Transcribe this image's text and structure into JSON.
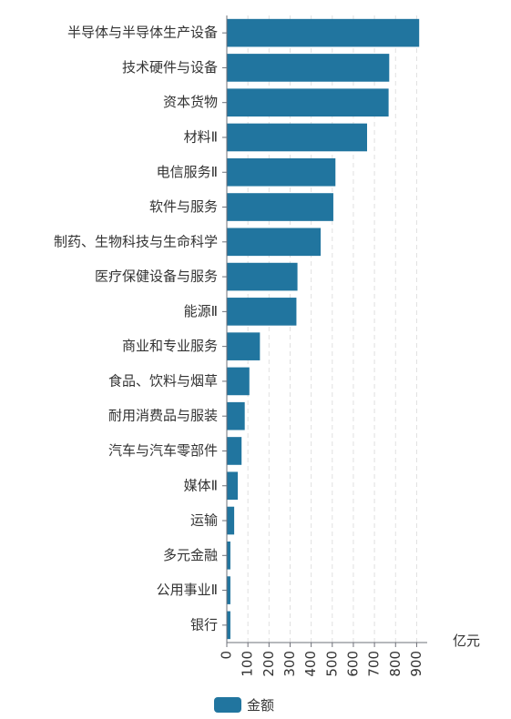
{
  "chart_data": {
    "type": "bar",
    "orientation": "horizontal",
    "categories": [
      "半导体与半导体生产设备",
      "技术硬件与设备",
      "资本货物",
      "材料Ⅱ",
      "电信服务Ⅱ",
      "软件与服务",
      "制药、生物科技与生命科学",
      "医疗保健设备与服务",
      "能源Ⅱ",
      "商业和专业服务",
      "食品、饮料与烟草",
      "耐用消费品与服装",
      "汽车与汽车零部件",
      "媒体Ⅱ",
      "运输",
      "多元金融",
      "公用事业Ⅱ",
      "银行"
    ],
    "series": [
      {
        "name": "金额",
        "color": "#21759f",
        "values": [
          912,
          770,
          767,
          665,
          515,
          505,
          445,
          335,
          330,
          157,
          107,
          85,
          70,
          52,
          35,
          17,
          17,
          17
        ]
      }
    ],
    "xlim": [
      0,
      950
    ],
    "xticks": [
      "0",
      "100",
      "200",
      "300",
      "400",
      "500",
      "600",
      "700",
      "800",
      "900"
    ],
    "unit_label": "亿元",
    "grid": "vertical-dashed",
    "legend": "bottom"
  }
}
